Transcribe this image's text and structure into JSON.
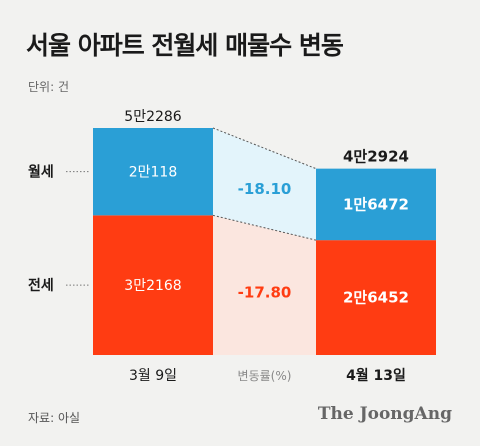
{
  "title": "서울 아파트 전월세 매물수 변동",
  "unit_label": "단위: 건",
  "source_label": "자료: 아실",
  "brand": "The JoongAng",
  "colors": {
    "monthly": "#2a9fd6",
    "jeonse": "#ff3c12",
    "monthly_band": "#e3f4fb",
    "jeonse_band": "#fbe6df",
    "monthly_change_text": "#2a9fd6",
    "jeonse_change_text": "#ff3c12"
  },
  "chart_data": {
    "type": "bar",
    "stacked": true,
    "categories": [
      "3월 9일",
      "4월 13일"
    ],
    "series": [
      {
        "name": "전세",
        "values": [
          32168,
          26452
        ],
        "labels": [
          "3만2168",
          "2만6452"
        ],
        "color": "#ff3c12"
      },
      {
        "name": "월세",
        "values": [
          20118,
          16472
        ],
        "labels": [
          "2만118",
          "1만6472"
        ],
        "color": "#2a9fd6"
      }
    ],
    "totals": [
      52286,
      42924
    ],
    "total_labels": [
      "5만2286",
      "4만2924"
    ],
    "change_axis_label": "변동률(%)",
    "changes": {
      "월세": "-18.10",
      "전세": "-17.80"
    }
  }
}
